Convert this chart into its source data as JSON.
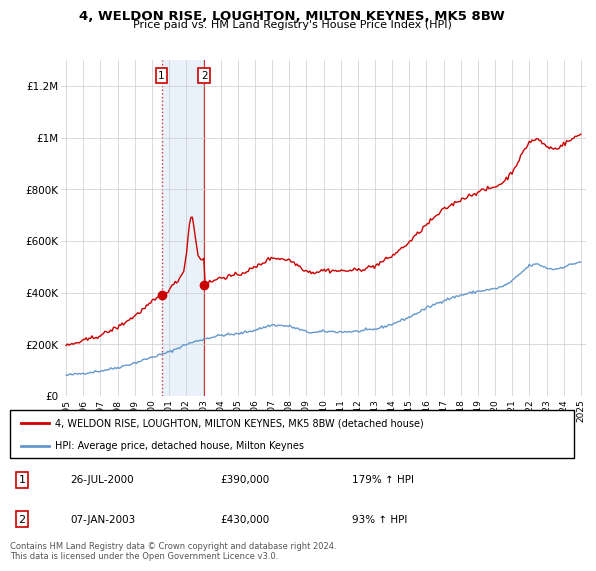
{
  "title": "4, WELDON RISE, LOUGHTON, MILTON KEYNES, MK5 8BW",
  "subtitle": "Price paid vs. HM Land Registry's House Price Index (HPI)",
  "legend_line1": "4, WELDON RISE, LOUGHTON, MILTON KEYNES, MK5 8BW (detached house)",
  "legend_line2": "HPI: Average price, detached house, Milton Keynes",
  "table_rows": [
    [
      "1",
      "26-JUL-2000",
      "£390,000",
      "179% ↑ HPI"
    ],
    [
      "2",
      "07-JAN-2003",
      "£430,000",
      "93% ↑ HPI"
    ]
  ],
  "footnote": "Contains HM Land Registry data © Crown copyright and database right 2024.\nThis data is licensed under the Open Government Licence v3.0.",
  "sale1_year": 2000.56,
  "sale1_price": 390000,
  "sale2_year": 2003.04,
  "sale2_price": 430000,
  "red_color": "#cc0000",
  "blue_color": "#6699cc",
  "shade_color": "#ddeeff",
  "ylim": [
    0,
    1300000
  ],
  "yticks": [
    0,
    200000,
    400000,
    600000,
    800000,
    1000000,
    1200000
  ],
  "ytick_labels": [
    "£0",
    "£200K",
    "£400K",
    "£600K",
    "£800K",
    "£1M",
    "£1.2M"
  ],
  "xtick_years": [
    1995,
    1996,
    1997,
    1998,
    1999,
    2000,
    2001,
    2002,
    2003,
    2004,
    2005,
    2006,
    2007,
    2008,
    2009,
    2010,
    2011,
    2012,
    2013,
    2014,
    2015,
    2016,
    2017,
    2018,
    2019,
    2020,
    2021,
    2022,
    2023,
    2024,
    2025
  ],
  "background_color": "#ffffff",
  "grid_color": "#cccccc"
}
